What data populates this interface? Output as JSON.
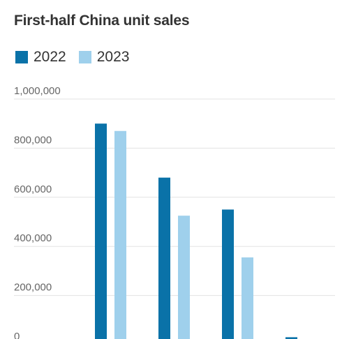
{
  "chart_data": {
    "type": "bar",
    "title": "First-half China unit sales",
    "categories": [
      "",
      "",
      "",
      ""
    ],
    "series": [
      {
        "name": "2022",
        "color": "#0a72a8",
        "values": [
          900000,
          680000,
          550000,
          30000
        ]
      },
      {
        "name": "2023",
        "color": "#9fd0ec",
        "values": [
          870000,
          525000,
          355000,
          0
        ]
      }
    ],
    "ylim": [
      0,
      1000000
    ],
    "yticks": [
      {
        "value": 0,
        "label": "0"
      },
      {
        "value": 200000,
        "label": "200,000"
      },
      {
        "value": 400000,
        "label": "400,000"
      },
      {
        "value": 600000,
        "label": "600,000"
      },
      {
        "value": 800000,
        "label": "800,000"
      },
      {
        "value": 1000000,
        "label": "1,000,000"
      }
    ],
    "grid": true,
    "legend": "top-left"
  }
}
